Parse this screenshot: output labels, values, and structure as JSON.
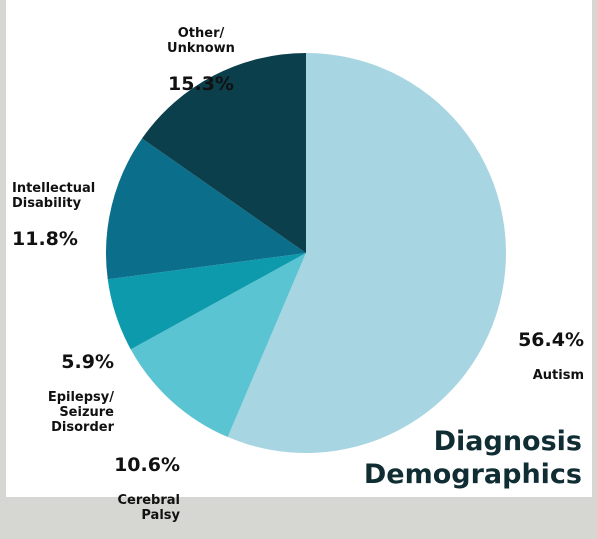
{
  "chart_data": {
    "type": "pie",
    "title": "Diagnosis\nDemographics",
    "slices": [
      {
        "label": "Autism",
        "value": 56.4,
        "display": "56.4%",
        "color": "#a8d5e2"
      },
      {
        "label": "Cerebral\nPalsy",
        "value": 10.6,
        "display": "10.6%",
        "color": "#5bc4d2"
      },
      {
        "label": "Epilepsy/\nSeizure\nDisorder",
        "value": 5.9,
        "display": "5.9%",
        "color": "#0e9aad"
      },
      {
        "label": "Intellectual\nDisability",
        "value": 11.8,
        "display": "11.8%",
        "color": "#0b6e8a"
      },
      {
        "label": "Other/\nUnknown",
        "value": 15.3,
        "display": "15.3%",
        "color": "#0c3f4c"
      }
    ]
  }
}
